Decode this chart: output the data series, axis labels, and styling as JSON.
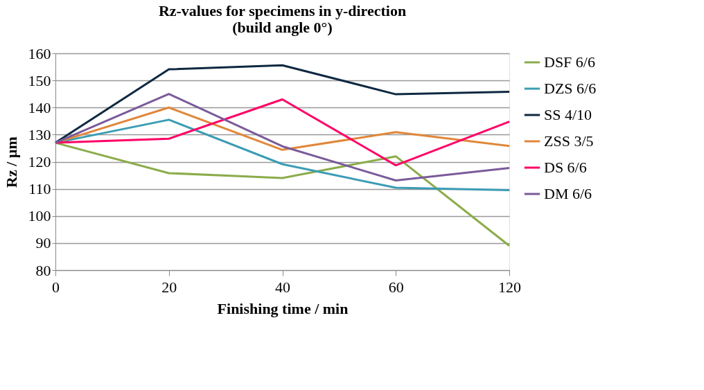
{
  "chart_data": {
    "type": "line",
    "title": "Rz-values for specimens in y-direction\n(build angle 0°)",
    "xlabel": "Finishing time / min",
    "ylabel": "Rz / µm",
    "categories": [
      "0",
      "20",
      "40",
      "60",
      "120"
    ],
    "series": [
      {
        "name": "DSF 6/6",
        "color": "#8bac4a",
        "values": [
          127,
          115.8,
          114,
          122,
          89
        ]
      },
      {
        "name": "DZS 6/6",
        "color": "#3b9cb4",
        "values": [
          127,
          135.5,
          119.1,
          110.4,
          109.5
        ]
      },
      {
        "name": "SS 4/10",
        "color": "#0e2841",
        "values": [
          127,
          154.1,
          155.6,
          144.9,
          145.8
        ]
      },
      {
        "name": "ZSS 3/5",
        "color": "#e0873a",
        "values": [
          127,
          140,
          124.4,
          130.9,
          125.8
        ]
      },
      {
        "name": "DS 6/6",
        "color": "#ff0066",
        "values": [
          127,
          128.5,
          143,
          118.7,
          134.8
        ]
      },
      {
        "name": "DM 6/6",
        "color": "#7a5a9a",
        "values": [
          127,
          145,
          125.7,
          113.1,
          117.7
        ]
      }
    ],
    "ylim": [
      80,
      160
    ],
    "yticks": [
      80,
      90,
      100,
      110,
      120,
      130,
      140,
      150,
      160
    ],
    "grid": "y",
    "legend": "right",
    "marker": "none",
    "line_style": "solid"
  }
}
